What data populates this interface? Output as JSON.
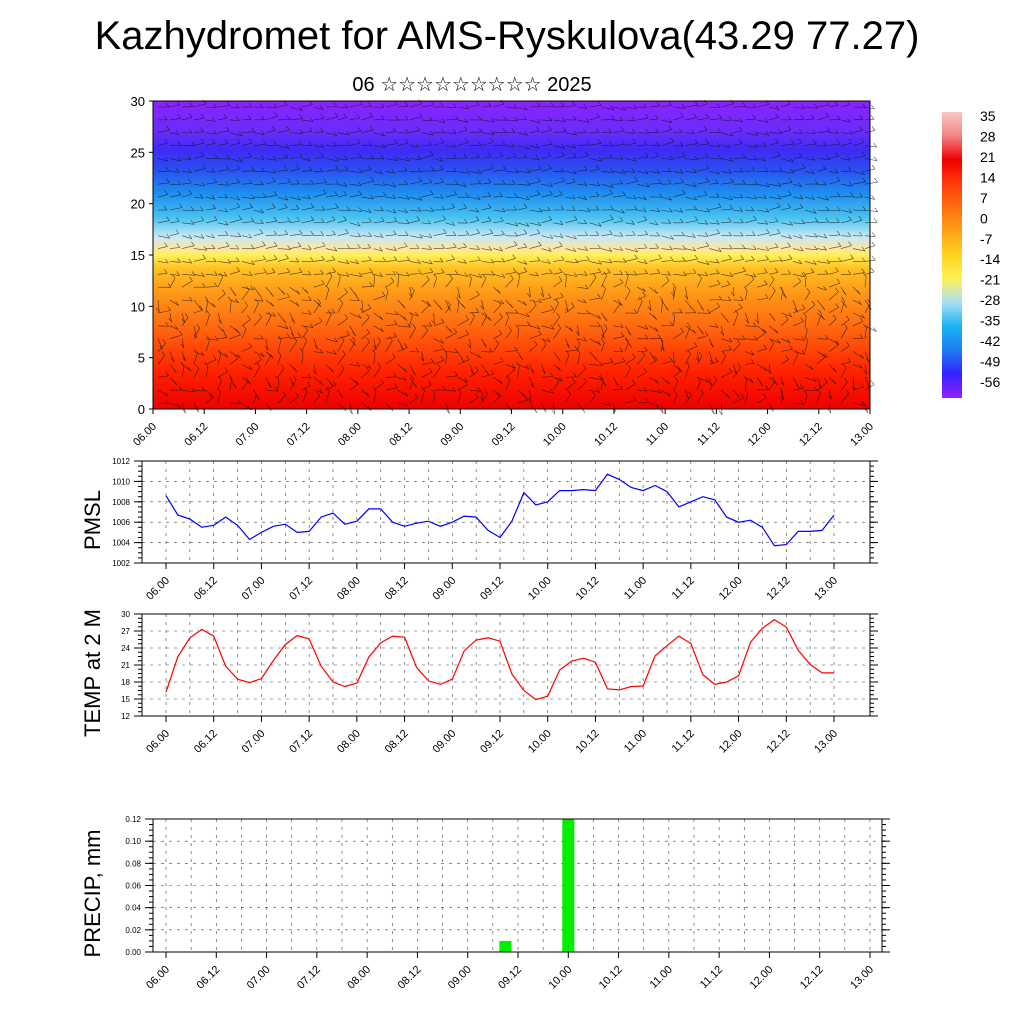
{
  "header": {
    "title": "Kazhydromet for AMS-Ryskulova(43.29 77.27)",
    "subtitle": "06 ☆☆☆☆☆☆☆☆☆ 2025"
  },
  "colors": {
    "pmsl": "#0000ff",
    "temp": "#ff0000",
    "precip": "#00ee00",
    "colorbar": [
      "#9322ff",
      "#3322ff",
      "#1d7cf0",
      "#1ab3f5",
      "#a8def5",
      "#fff15a",
      "#ffd21f",
      "#ffa018",
      "#ff6f12",
      "#ff3a0a",
      "#ee0000",
      "#f48484",
      "#f8c6c6"
    ]
  },
  "chart_data": [
    {
      "type": "heatmap",
      "name": "cross-section",
      "ylim": [
        0,
        30
      ],
      "yticks": [
        "0",
        "5",
        "10",
        "15",
        "20",
        "25",
        "30"
      ],
      "xticks": [
        "06.00",
        "06.12",
        "07.00",
        "07.12",
        "08.00",
        "08.12",
        "09.00",
        "09.12",
        "10.00",
        "10.12",
        "11.00",
        "11.12",
        "12.00",
        "12.12",
        "13.00"
      ],
      "colorbar_labels": [
        "35",
        "28",
        "21",
        "14",
        "7",
        "0",
        "-7",
        "-14",
        "-21",
        "-28",
        "-35",
        "-42",
        "-49",
        "-56"
      ],
      "colorbar_range": [
        -63,
        42
      ]
    },
    {
      "type": "line",
      "ylabel": "PMSL",
      "ylim": [
        1002,
        1012
      ],
      "yticks": [
        "1002",
        "1004",
        "1006",
        "1008",
        "1010",
        "1012"
      ],
      "xticks": [
        "06.00",
        "06.12",
        "07.00",
        "07.12",
        "08.00",
        "08.12",
        "09.00",
        "09.12",
        "10.00",
        "10.12",
        "11.00",
        "11.12",
        "12.00",
        "12.12",
        "13.00"
      ],
      "x_hours": [
        0,
        3,
        6,
        9,
        12,
        15,
        18,
        21,
        24,
        27,
        30,
        33,
        36,
        39,
        42,
        45,
        48,
        51,
        54,
        57,
        60,
        63,
        66,
        69,
        72,
        75,
        78,
        81,
        84,
        87,
        90,
        93,
        96,
        99,
        102,
        105,
        108,
        111,
        114,
        117,
        120,
        123,
        126,
        129,
        132,
        135,
        138,
        141,
        144,
        147,
        150,
        153,
        156,
        159,
        162,
        165,
        168
      ],
      "values": [
        1008.6,
        1006.7,
        1006.3,
        1005.5,
        1005.7,
        1006.5,
        1005.7,
        1004.3,
        1005.0,
        1005.6,
        1005.8,
        1005.0,
        1005.1,
        1006.5,
        1006.9,
        1005.8,
        1006.1,
        1007.3,
        1007.3,
        1006.0,
        1005.6,
        1005.9,
        1006.1,
        1005.6,
        1006.0,
        1006.6,
        1006.5,
        1005.2,
        1004.5,
        1006.1,
        1008.9,
        1007.7,
        1008.0,
        1009.1,
        1009.1,
        1009.2,
        1009.1,
        1010.7,
        1010.2,
        1009.4,
        1009.1,
        1009.6,
        1009.0,
        1007.5,
        1008.0,
        1008.5,
        1008.2,
        1006.5,
        1006.0,
        1006.2,
        1005.5,
        1003.7,
        1003.8,
        1005.1,
        1005.1,
        1005.2,
        1006.7
      ]
    },
    {
      "type": "line",
      "ylabel": "TEMP at 2 M",
      "ylim": [
        12,
        30
      ],
      "yticks": [
        "12",
        "15",
        "18",
        "21",
        "24",
        "27",
        "30"
      ],
      "xticks": [
        "06.00",
        "06.12",
        "07.00",
        "07.12",
        "08.00",
        "08.12",
        "09.00",
        "09.12",
        "10.00",
        "10.12",
        "11.00",
        "11.12",
        "12.00",
        "12.12",
        "13.00"
      ],
      "x_hours": [
        0,
        3,
        6,
        9,
        12,
        15,
        18,
        21,
        24,
        27,
        30,
        33,
        36,
        39,
        42,
        45,
        48,
        51,
        54,
        57,
        60,
        63,
        66,
        69,
        72,
        75,
        78,
        81,
        84,
        87,
        90,
        93,
        96,
        99,
        102,
        105,
        108,
        111,
        114,
        117,
        120,
        123,
        126,
        129,
        132,
        135,
        138,
        141,
        144,
        147,
        150,
        153,
        156,
        159,
        162,
        165,
        168
      ],
      "values": [
        16.2,
        22.5,
        25.8,
        27.3,
        26.1,
        20.8,
        18.5,
        17.9,
        18.6,
        21.8,
        24.6,
        26.2,
        25.6,
        20.8,
        18.0,
        17.2,
        17.8,
        22.4,
        24.9,
        26.1,
        25.9,
        20.6,
        18.2,
        17.6,
        18.5,
        23.5,
        25.4,
        25.8,
        25.2,
        19.4,
        16.5,
        14.9,
        15.5,
        20.1,
        21.7,
        22.2,
        21.5,
        16.8,
        16.6,
        17.2,
        17.3,
        22.6,
        24.4,
        26.1,
        24.8,
        19.3,
        17.6,
        18.0,
        19.1,
        25.0,
        27.5,
        29.0,
        27.7,
        23.6,
        21.1,
        19.6,
        19.6
      ]
    },
    {
      "type": "bar",
      "ylabel": "PRECIP, mm",
      "ylim": [
        0,
        0.12
      ],
      "yticks": [
        "0.00",
        "0.02",
        "0.04",
        "0.06",
        "0.08",
        "0.10",
        "0.12"
      ],
      "xticks": [
        "06.00",
        "06.12",
        "07.00",
        "07.12",
        "08.00",
        "08.12",
        "09.00",
        "09.12",
        "10.00",
        "10.12",
        "11.00",
        "11.12",
        "12.00",
        "12.12",
        "13.00"
      ],
      "x_hours": [
        81,
        96
      ],
      "values": [
        0.01,
        0.12
      ]
    }
  ]
}
